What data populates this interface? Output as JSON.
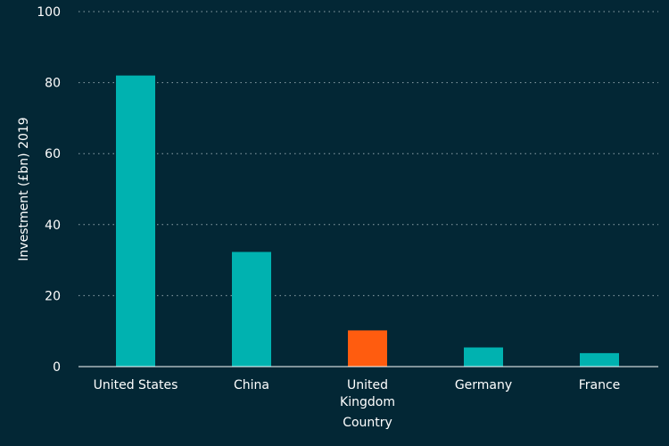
{
  "colors": {
    "background": "#032735",
    "bar_default": "#00b2b0",
    "bar_highlight": "#ff5c0f",
    "text": "#ffffff",
    "grid": "#8fa3ab"
  },
  "chart_data": {
    "type": "bar",
    "categories": [
      "United States",
      "China",
      "United Kingdom",
      "Germany",
      "France"
    ],
    "category_label_lines": [
      [
        "United States"
      ],
      [
        "China"
      ],
      [
        "United",
        "Kingdom"
      ],
      [
        "Germany"
      ],
      [
        "France"
      ]
    ],
    "values": [
      82,
      32.3,
      10.2,
      5.4,
      3.8
    ],
    "highlight": [
      "United Kingdom"
    ],
    "xlabel": "Country",
    "ylabel": "Investment (£bn) 2019",
    "ylim": [
      0,
      100
    ],
    "yticks": [
      0,
      20,
      40,
      60,
      80,
      100
    ],
    "grid": true,
    "legend": false
  }
}
